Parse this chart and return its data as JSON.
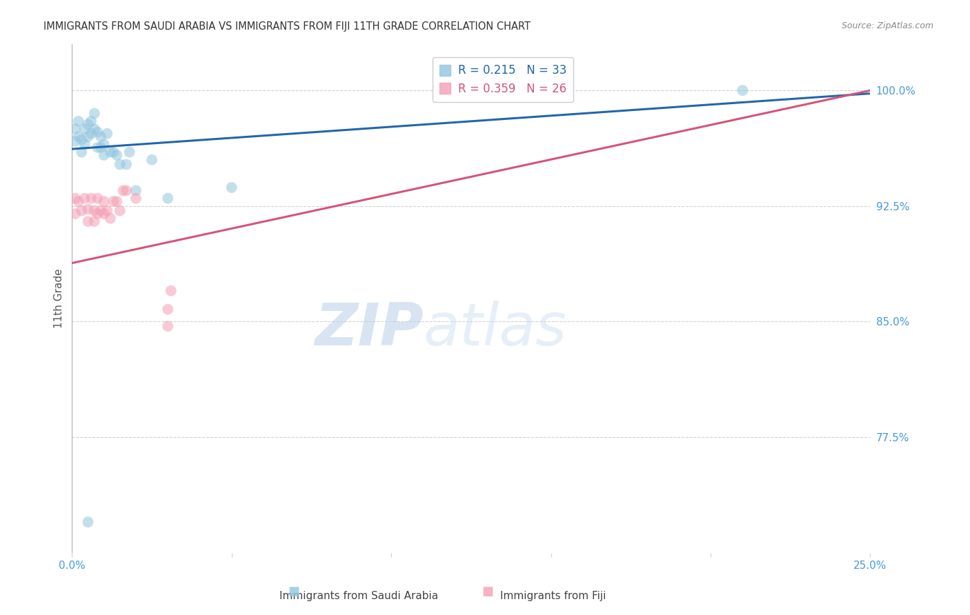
{
  "title": "IMMIGRANTS FROM SAUDI ARABIA VS IMMIGRANTS FROM FIJI 11TH GRADE CORRELATION CHART",
  "source": "Source: ZipAtlas.com",
  "ylabel": "11th Grade",
  "xlim": [
    0.0,
    0.25
  ],
  "ylim": [
    0.7,
    1.03
  ],
  "xticks": [
    0.0,
    0.05,
    0.1,
    0.15,
    0.2,
    0.25
  ],
  "xtick_labels": [
    "0.0%",
    "",
    "",
    "",
    "",
    "25.0%"
  ],
  "yticks": [
    0.775,
    0.85,
    0.925,
    1.0
  ],
  "ytick_labels": [
    "77.5%",
    "85.0%",
    "92.5%",
    "100.0%"
  ],
  "watermark_zip": "ZIP",
  "watermark_atlas": "atlas",
  "legend_blue_r": "R = 0.215",
  "legend_blue_n": "N = 33",
  "legend_pink_r": "R = 0.359",
  "legend_pink_n": "N = 26",
  "blue_color": "#92c5de",
  "pink_color": "#f4a0b5",
  "blue_line_color": "#2166ac",
  "pink_line_color": "#d6537a",
  "blue_scatter_x": [
    0.001,
    0.001,
    0.002,
    0.002,
    0.003,
    0.003,
    0.004,
    0.004,
    0.005,
    0.005,
    0.006,
    0.006,
    0.007,
    0.007,
    0.008,
    0.008,
    0.009,
    0.009,
    0.01,
    0.01,
    0.011,
    0.012,
    0.013,
    0.014,
    0.015,
    0.017,
    0.018,
    0.02,
    0.025,
    0.03,
    0.05,
    0.21,
    0.005
  ],
  "blue_scatter_y": [
    0.975,
    0.967,
    0.98,
    0.97,
    0.968,
    0.96,
    0.975,
    0.965,
    0.978,
    0.97,
    0.98,
    0.972,
    0.985,
    0.975,
    0.973,
    0.963,
    0.97,
    0.963,
    0.965,
    0.958,
    0.972,
    0.96,
    0.96,
    0.958,
    0.952,
    0.952,
    0.96,
    0.935,
    0.955,
    0.93,
    0.937,
    1.0,
    0.72
  ],
  "pink_scatter_x": [
    0.001,
    0.001,
    0.002,
    0.003,
    0.004,
    0.005,
    0.005,
    0.006,
    0.007,
    0.007,
    0.008,
    0.008,
    0.009,
    0.01,
    0.01,
    0.011,
    0.012,
    0.013,
    0.014,
    0.015,
    0.016,
    0.017,
    0.02,
    0.03,
    0.03,
    0.031
  ],
  "pink_scatter_y": [
    0.93,
    0.92,
    0.928,
    0.922,
    0.93,
    0.923,
    0.915,
    0.93,
    0.922,
    0.915,
    0.93,
    0.92,
    0.922,
    0.928,
    0.92,
    0.922,
    0.917,
    0.928,
    0.928,
    0.922,
    0.935,
    0.935,
    0.93,
    0.847,
    0.858,
    0.87
  ],
  "blue_trend_x": [
    0.0,
    0.25
  ],
  "blue_trend_y": [
    0.962,
    0.998
  ],
  "pink_trend_x": [
    0.0,
    0.25
  ],
  "pink_trend_y": [
    0.888,
    1.0
  ],
  "legend_label_blue": "Immigrants from Saudi Arabia",
  "legend_label_pink": "Immigrants from Fiji",
  "grid_color": "#d0d0d0",
  "axis_color": "#aaaaaa",
  "tick_label_color": "#4499dd",
  "title_color": "#333333",
  "source_color": "#888888",
  "ylabel_color": "#555555"
}
